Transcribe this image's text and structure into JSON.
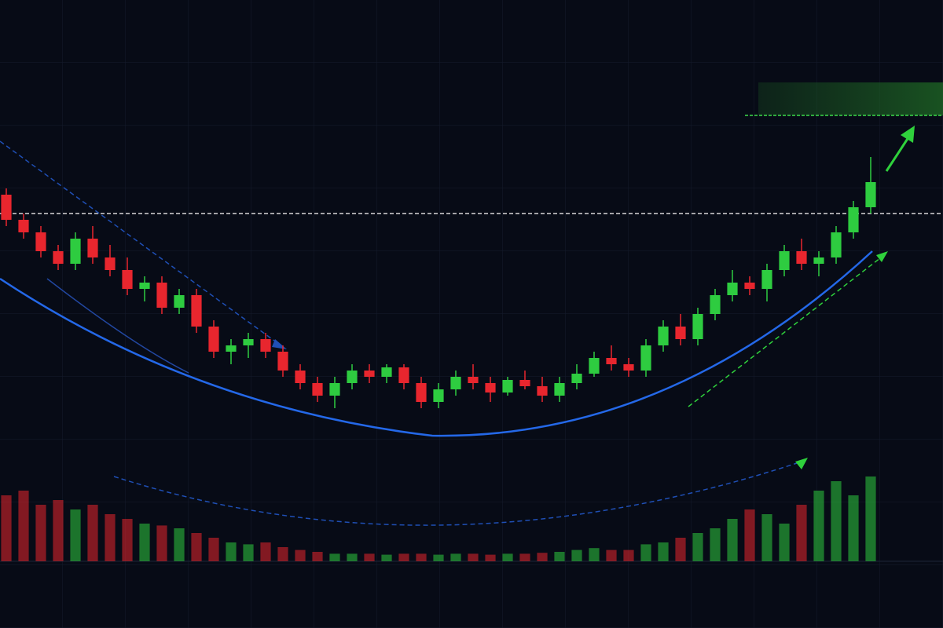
{
  "chart_data": {
    "type": "candlestick",
    "open": [
      69,
      65,
      63,
      60,
      58,
      62,
      59,
      57,
      54,
      55,
      51,
      53,
      48,
      44,
      45,
      46,
      44,
      41,
      39,
      37,
      39,
      41,
      40,
      41.5,
      39,
      36,
      38,
      40,
      39,
      37.5,
      39.5,
      38.5,
      37,
      39,
      40.5,
      43,
      42,
      41,
      45,
      48,
      46,
      50,
      53,
      55,
      54,
      57,
      60,
      58,
      59,
      63,
      67
    ],
    "high": [
      70,
      66,
      64,
      61,
      63,
      64,
      61,
      59,
      56,
      56,
      54,
      54,
      49,
      46,
      47,
      47,
      45,
      42,
      40,
      40,
      42,
      42,
      42,
      42,
      40,
      39,
      41,
      42,
      40,
      40,
      41,
      40,
      40,
      42,
      44,
      45,
      43,
      46,
      49,
      50,
      51,
      54,
      57,
      56,
      58,
      61,
      62,
      60,
      64,
      68,
      75
    ],
    "low": [
      64,
      62,
      59,
      57,
      57,
      58,
      56,
      53,
      52,
      50,
      50,
      47,
      43,
      42,
      43,
      43,
      40,
      38,
      36,
      35,
      38,
      39,
      39,
      38,
      35,
      35,
      37,
      38,
      36,
      37,
      38,
      36,
      36,
      38,
      40,
      41,
      40,
      40,
      44,
      45,
      45,
      49,
      52,
      53,
      52,
      56,
      57,
      56,
      58,
      62,
      66
    ],
    "close": [
      65,
      63,
      60,
      58,
      62,
      59,
      57,
      54,
      55,
      51,
      53,
      48,
      44,
      45,
      46,
      44,
      41,
      39,
      37,
      39,
      41,
      40,
      41.5,
      39,
      36,
      38,
      40,
      39,
      37.5,
      39.5,
      38.5,
      37,
      39,
      40.5,
      43,
      42,
      41,
      45,
      48,
      46,
      50,
      53,
      55,
      54,
      57,
      60,
      58,
      59,
      63,
      67,
      71
    ],
    "volume": [
      70,
      75,
      60,
      65,
      55,
      60,
      50,
      45,
      40,
      38,
      35,
      30,
      25,
      20,
      18,
      20,
      15,
      12,
      10,
      8,
      8,
      8,
      7,
      8,
      8,
      7,
      8,
      8,
      7,
      8,
      8,
      9,
      10,
      12,
      14,
      12,
      12,
      18,
      20,
      25,
      30,
      35,
      45,
      55,
      50,
      40,
      60,
      75,
      85,
      70,
      90
    ],
    "up_color": "#2ecc40",
    "down_color": "#e8262e",
    "ylim": [
      0,
      100
    ],
    "volume_ylim": [
      0,
      100
    ]
  }
}
